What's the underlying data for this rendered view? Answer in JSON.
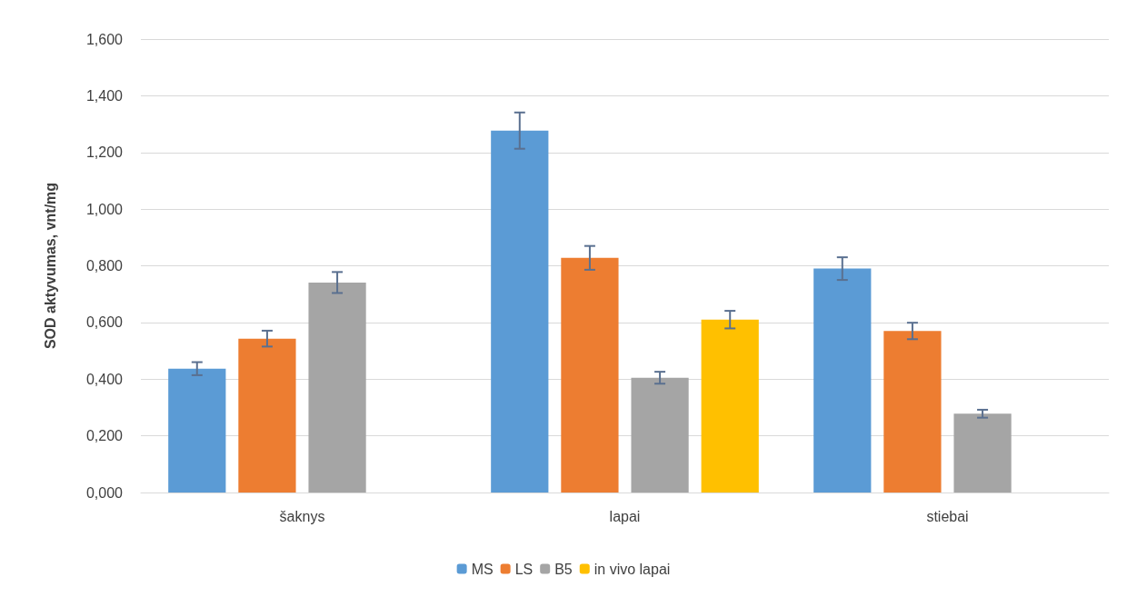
{
  "chart_data": {
    "type": "bar",
    "ylabel": "SOD aktyvumas, vnt/mg",
    "categories": [
      "šaknys",
      "lapai",
      "stiebai"
    ],
    "series": [
      {
        "name": "MS",
        "color": "#5b9bd5",
        "values": [
          0.437,
          1.277,
          0.79
        ],
        "errors": [
          0.023,
          0.064,
          0.04
        ]
      },
      {
        "name": "LS",
        "color": "#ed7d31",
        "values": [
          0.543,
          0.828,
          0.57
        ],
        "errors": [
          0.028,
          0.042,
          0.029
        ]
      },
      {
        "name": "B5",
        "color": "#a5a5a5",
        "values": [
          0.741,
          0.405,
          0.278
        ],
        "errors": [
          0.037,
          0.021,
          0.014
        ]
      },
      {
        "name": "in vivo lapai",
        "color": "#ffc000",
        "values": [
          null,
          0.61,
          null
        ],
        "errors": [
          null,
          0.031,
          null
        ]
      }
    ],
    "ylim": [
      0,
      1.6
    ],
    "yticks": [
      {
        "value": 0,
        "label": "0,000"
      },
      {
        "value": 0.2,
        "label": "0,200"
      },
      {
        "value": 0.4,
        "label": "0,400"
      },
      {
        "value": 0.6,
        "label": "0,600"
      },
      {
        "value": 0.8,
        "label": "0,800"
      },
      {
        "value": 1.0,
        "label": "1,000"
      },
      {
        "value": 1.2,
        "label": "1,200"
      },
      {
        "value": 1.4,
        "label": "1,400"
      },
      {
        "value": 1.6,
        "label": "1,600"
      }
    ],
    "grid": "y",
    "legend": "bottom"
  }
}
